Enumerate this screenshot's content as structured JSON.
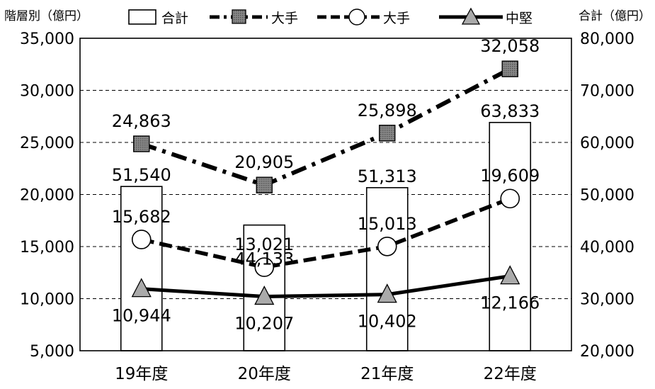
{
  "chart_data": {
    "type": "bar",
    "categories": [
      "19年度",
      "20年度",
      "21年度",
      "22年度"
    ],
    "left_axis": {
      "label": "階層別（億円）",
      "range": [
        5000,
        35000
      ],
      "ticks": [
        5000,
        10000,
        15000,
        20000,
        25000,
        30000,
        35000
      ],
      "tick_labels": [
        "5,000",
        "10,000",
        "15,000",
        "20,000",
        "25,000",
        "30,000",
        "35,000"
      ]
    },
    "right_axis": {
      "label": "合計（億円）",
      "range": [
        20000,
        80000
      ],
      "ticks": [
        20000,
        30000,
        40000,
        50000,
        60000,
        70000,
        80000
      ],
      "tick_labels": [
        "20,000",
        "30,000",
        "40,000",
        "50,000",
        "60,000",
        "70,000",
        "80,000"
      ]
    },
    "grid": "horizontal dashed",
    "legend_position": "top",
    "series": [
      {
        "name": "合計",
        "type": "bar",
        "axis": "right",
        "values": [
          51540,
          44133,
          51313,
          63833
        ],
        "labels": [
          "51,540",
          "44,133",
          "51,313",
          "63,833"
        ]
      },
      {
        "name": "大手",
        "type": "line",
        "axis": "left",
        "marker": "square",
        "dash": "dash-dot",
        "values": [
          24863,
          20905,
          25898,
          32058
        ],
        "labels": [
          "24,863",
          "20,905",
          "25,898",
          "32,058"
        ]
      },
      {
        "name": "大手",
        "type": "line",
        "axis": "left",
        "marker": "circle",
        "dash": "dashed",
        "values": [
          15682,
          13021,
          15013,
          19609
        ],
        "labels": [
          "15,682",
          "13,021",
          "15,013",
          "19,609"
        ]
      },
      {
        "name": "中堅",
        "type": "line",
        "axis": "left",
        "marker": "triangle",
        "dash": "solid",
        "values": [
          10944,
          10207,
          10402,
          12166
        ],
        "labels": [
          "10,944",
          "10,207",
          "10,402",
          "12,166"
        ]
      }
    ]
  }
}
